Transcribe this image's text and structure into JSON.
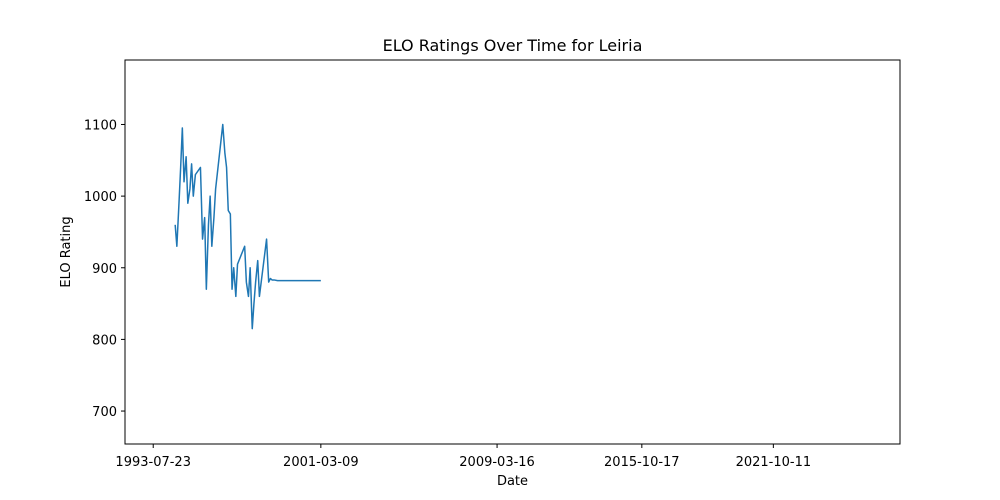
{
  "chart_data": {
    "type": "line",
    "title": "ELO Ratings Over Time for Leiria",
    "xlabel": "Date",
    "ylabel": "ELO Rating",
    "x_tick_labels": [
      "1993-07-23",
      "2001-03-09",
      "2009-03-16",
      "2015-10-17",
      "2021-10-11"
    ],
    "x_tick_dates": [
      "1993-07-23",
      "2001-03-09",
      "2009-03-16",
      "2015-10-17",
      "2021-10-11"
    ],
    "y_ticks": [
      700,
      800,
      900,
      1000,
      1100
    ],
    "xlim": [
      "1992-04-10",
      "2027-07-17"
    ],
    "ylim": [
      654,
      1190
    ],
    "grid": false,
    "legend": "none",
    "line_color": "#1f77b4",
    "series": [
      {
        "dates": [
          "1994-07-23",
          "1994-08-20",
          "1994-09-24",
          "1994-10-22",
          "1994-11-19",
          "1994-12-17",
          "1995-01-21",
          "1995-02-18",
          "1995-03-25",
          "1995-04-22",
          "1995-05-20",
          "1995-06-24",
          "1995-09-16",
          "1995-10-21",
          "1995-11-25",
          "1995-12-23",
          "1996-01-27",
          "1996-02-24",
          "1996-03-23",
          "1996-04-27",
          "1996-05-25",
          "1996-09-21",
          "1996-10-26",
          "1996-11-23",
          "1996-12-21",
          "1997-01-25",
          "1997-02-22",
          "1997-03-22",
          "1997-04-26",
          "1997-05-24",
          "1997-09-20",
          "1997-10-18",
          "1997-11-22",
          "1997-12-20",
          "1998-01-24",
          "1998-02-21",
          "1998-03-21",
          "1998-04-25",
          "1998-05-23",
          "1998-09-19",
          "1998-10-24",
          "1998-11-21",
          "1998-12-19",
          "1999-01-23",
          "1999-03-20",
          "2001-03-09"
        ],
        "values": [
          960,
          930,
          990,
          1040,
          1095,
          1020,
          1055,
          990,
          1010,
          1045,
          1000,
          1030,
          1040,
          940,
          970,
          870,
          960,
          1000,
          930,
          970,
          1010,
          1100,
          1060,
          1040,
          980,
          975,
          870,
          900,
          860,
          905,
          930,
          880,
          860,
          900,
          815,
          850,
          880,
          910,
          860,
          940,
          880,
          885,
          883,
          883,
          882,
          882
        ]
      }
    ]
  }
}
